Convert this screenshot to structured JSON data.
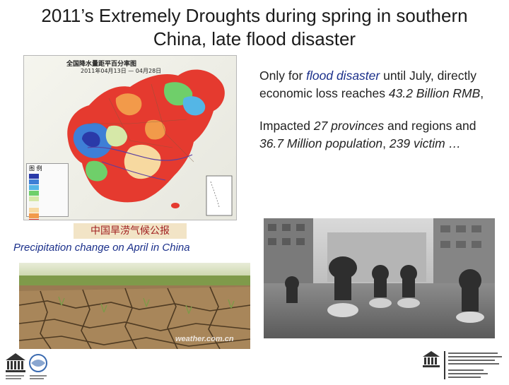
{
  "slide": {
    "title_line1": "2011’s Extremely Droughts during spring in southern",
    "title_line2": "China, late flood disaster"
  },
  "map": {
    "title": "全国降水量距平百分率图",
    "subtitle": "2011年04月13日 — 04月28日",
    "legend_title": "图 例",
    "legend_colors": [
      "#2a3aa8",
      "#3e7fd6",
      "#54b6e6",
      "#6fcf6a",
      "#d6e8a8",
      "#f5f5ee",
      "#f7d9a0",
      "#f29a4a",
      "#e53a2f"
    ],
    "source_label": "中国旱涝气候公报",
    "caption": "Precipitation change on April in China"
  },
  "text": {
    "p1_a": "Only for ",
    "p1_b": "flood disaster",
    "p1_c": " until July, directly economic loss reaches ",
    "p1_d": "43.2 Billion RMB",
    "p1_e": ",",
    "p2_a": "Impacted ",
    "p2_b": "27 provinces",
    "p2_c": " and regions and ",
    "p2_d": "36.7 Million population",
    "p2_e": ", ",
    "p2_f": "239 victim …"
  },
  "photos": {
    "drought_credit": "weather.com.cn"
  },
  "colors": {
    "caption_blue": "#1a2f8a",
    "source_red": "#a02020"
  }
}
